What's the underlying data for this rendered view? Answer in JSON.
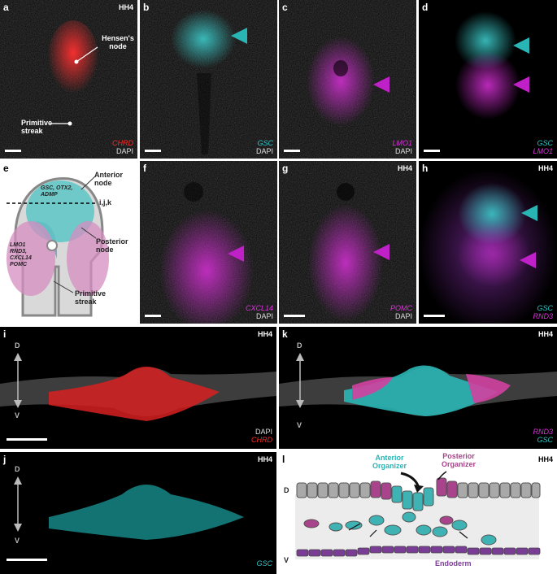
{
  "stage": "HH4",
  "panels": {
    "a": {
      "label": "a",
      "gene": "CHRD",
      "counter": "DAPI",
      "hensen": "Hensen's node",
      "streak": "Primitive streak"
    },
    "b": {
      "label": "b",
      "gene": "GSC",
      "counter": "DAPI"
    },
    "c": {
      "label": "c",
      "gene": "LMO1",
      "counter": "DAPI"
    },
    "d": {
      "label": "d",
      "gene1": "GSC",
      "gene2": "LMO1"
    },
    "e": {
      "label": "e",
      "anterior": "Anterior node",
      "posterior": "Posterior node",
      "streak": "Primitive streak",
      "ant_genes": "GSC, OTX2, ADMP",
      "post_genes": "LMO1 RND3, CXCL14 POMC",
      "section": "i,j,k"
    },
    "f": {
      "label": "f",
      "gene": "CXCL14",
      "counter": "DAPI"
    },
    "g": {
      "label": "g",
      "gene": "POMC",
      "counter": "DAPI"
    },
    "h": {
      "label": "h",
      "gene1": "GSC",
      "gene2": "RND3"
    },
    "i": {
      "label": "i",
      "d": "D",
      "v": "V",
      "counter": "DAPI",
      "gene": "CHRD"
    },
    "k": {
      "label": "k",
      "d": "D",
      "v": "V",
      "gene1": "RND3",
      "gene2": "GSC"
    },
    "j": {
      "label": "j",
      "d": "D",
      "v": "V",
      "gene": "GSC"
    },
    "l": {
      "label": "l",
      "d": "D",
      "v": "V",
      "anterior": "Anterior Organizer",
      "posterior": "Posterior Organizer",
      "endoderm": "Endoderm"
    }
  },
  "colors": {
    "red": "#ff2a2a",
    "cyan": "#2ec4c4",
    "magenta": "#e030e0",
    "purple": "#7a3d96",
    "grey": "#9a9a9a"
  }
}
